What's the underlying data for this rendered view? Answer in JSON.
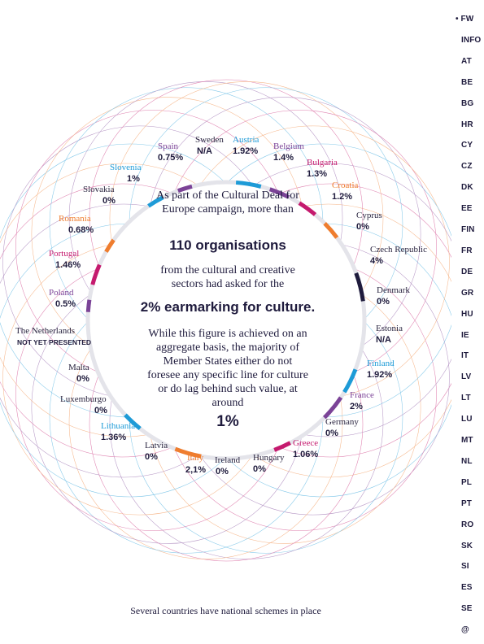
{
  "nav": {
    "items": [
      {
        "label": "• FW",
        "active": true
      },
      {
        "label": "INFO"
      },
      {
        "label": "AT"
      },
      {
        "label": "BE"
      },
      {
        "label": "BG"
      },
      {
        "label": "HR"
      },
      {
        "label": "CY"
      },
      {
        "label": "CZ"
      },
      {
        "label": "DK"
      },
      {
        "label": "EE"
      },
      {
        "label": "FIN"
      },
      {
        "label": "FR"
      },
      {
        "label": "DE"
      },
      {
        "label": "GR"
      },
      {
        "label": "HU"
      },
      {
        "label": "IE"
      },
      {
        "label": "IT"
      },
      {
        "label": "LV"
      },
      {
        "label": "LT"
      },
      {
        "label": "LU"
      },
      {
        "label": "MT"
      },
      {
        "label": "NL"
      },
      {
        "label": "PL"
      },
      {
        "label": "PT"
      },
      {
        "label": "RO"
      },
      {
        "label": "SK"
      },
      {
        "label": "SI"
      },
      {
        "label": "ES"
      },
      {
        "label": "SE"
      },
      {
        "label": "@"
      }
    ]
  },
  "countries": [
    {
      "name": "Sweden",
      "value": "N/A",
      "name_color": "#2a2540",
      "ring_color": "#1f1b3d",
      "share": 0
    },
    {
      "name": "Austria",
      "value": "1.92%",
      "name_color": "#1e9bd7",
      "ring_color": "#1e9bd7",
      "share": 1.92
    },
    {
      "name": "Belgium",
      "value": "1.4%",
      "name_color": "#7b4397",
      "ring_color": "#7b4397",
      "share": 1.4
    },
    {
      "name": "Bulgaria",
      "value": "1.3%",
      "name_color": "#c51a6e",
      "ring_color": "#c51a6e",
      "share": 1.3
    },
    {
      "name": "Croatia",
      "value": "1.2%",
      "name_color": "#ef7d2e",
      "ring_color": "#ef7d2e",
      "share": 1.2
    },
    {
      "name": "Cyprus",
      "value": "0%",
      "name_color": "#2a2540",
      "ring_color": "#1f1b3d",
      "share": 0
    },
    {
      "name": "Czech Republic",
      "value": "4%",
      "name_color": "#2a2540",
      "ring_color": "#1f1b3d",
      "share": 4
    },
    {
      "name": "Denmark",
      "value": "0%",
      "name_color": "#2a2540",
      "ring_color": "#1f1b3d",
      "share": 0
    },
    {
      "name": "Estonia",
      "value": "N/A",
      "name_color": "#2a2540",
      "ring_color": "#1f1b3d",
      "share": 0
    },
    {
      "name": "Finland",
      "value": "1.92%",
      "name_color": "#1e9bd7",
      "ring_color": "#1e9bd7",
      "share": 1.92
    },
    {
      "name": "France",
      "value": "2%",
      "name_color": "#7b4397",
      "ring_color": "#7b4397",
      "share": 2
    },
    {
      "name": "Germany",
      "value": "0%",
      "name_color": "#2a2540",
      "ring_color": "#1f1b3d",
      "share": 0
    },
    {
      "name": "Greece",
      "value": "1.06%",
      "name_color": "#c51a6e",
      "ring_color": "#c51a6e",
      "share": 1.06
    },
    {
      "name": "Hungary",
      "value": "0%",
      "name_color": "#2a2540",
      "ring_color": "#1f1b3d",
      "share": 0
    },
    {
      "name": "Ireland",
      "value": "0%",
      "name_color": "#2a2540",
      "ring_color": "#1f1b3d",
      "share": 0
    },
    {
      "name": "Italy",
      "value": "2,1%",
      "name_color": "#ef7d2e",
      "ring_color": "#ef7d2e",
      "share": 2.1
    },
    {
      "name": "Latvia",
      "value": "0%",
      "name_color": "#2a2540",
      "ring_color": "#1f1b3d",
      "share": 0
    },
    {
      "name": "Lithuania",
      "value": "1.36%",
      "name_color": "#1e9bd7",
      "ring_color": "#1e9bd7",
      "share": 1.36
    },
    {
      "name": "Luxemburgo",
      "value": "0%",
      "name_color": "#2a2540",
      "ring_color": "#1f1b3d",
      "share": 0
    },
    {
      "name": "Malta",
      "value": "0%",
      "name_color": "#2a2540",
      "ring_color": "#1f1b3d",
      "share": 0
    },
    {
      "name": "The Netherlands",
      "value": "NOT YET PRESENTED",
      "name_color": "#2a2540",
      "ring_color": "#1f1b3d",
      "share": 0
    },
    {
      "name": "Poland",
      "value": "0.5%",
      "name_color": "#7b4397",
      "ring_color": "#7b4397",
      "share": 0.5
    },
    {
      "name": "Portugal",
      "value": "1.46%",
      "name_color": "#c51a6e",
      "ring_color": "#c51a6e",
      "share": 1.46
    },
    {
      "name": "Romania",
      "value": "0.68%",
      "name_color": "#ef7d2e",
      "ring_color": "#ef7d2e",
      "share": 0.68
    },
    {
      "name": "Slovakia",
      "value": "0%",
      "name_color": "#2a2540",
      "ring_color": "#1f1b3d",
      "share": 0
    },
    {
      "name": "Slovenia",
      "value": "1%",
      "name_color": "#1e9bd7",
      "ring_color": "#1e9bd7",
      "share": 1
    },
    {
      "name": "Spain",
      "value": "0.75%",
      "name_color": "#7b4397",
      "ring_color": "#7b4397",
      "share": 0.75
    }
  ],
  "center": {
    "intro": "As part of the Cultural Deal for Europe campaign, more than",
    "orgs": "110 organisations",
    "sectors": "from the cultural and creative sectors had asked for the",
    "earmark": "2% earmarking for culture.",
    "body": "While this figure is achieved on an aggregate basis, the majority of Member States either do not foresee any specific line for culture or do lag behind such value, at around",
    "around": "1%"
  },
  "footer": "Several countries have national schemes in place",
  "colors": {
    "navy": "#1f1b3d",
    "blue": "#1e9bd7",
    "purple": "#7b4397",
    "magenta": "#c51a6e",
    "orange": "#ef7d2e",
    "ring_track": "#e4e4ea"
  }
}
